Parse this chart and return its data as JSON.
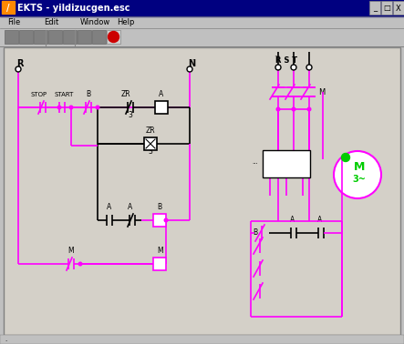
{
  "title": "EKTS - yildizucgen.esc",
  "bg_color": "#c0c0c0",
  "titlebar_color": "#000080",
  "titlebar_text_color": "#ffffff",
  "canvas_bg": "#d4d0c8",
  "circuit_color_black": "#000000",
  "circuit_color_magenta": "#ff00ff",
  "circuit_color_green": "#00cc00",
  "menu_items": [
    "File",
    "Edit",
    "Window",
    "Help"
  ]
}
